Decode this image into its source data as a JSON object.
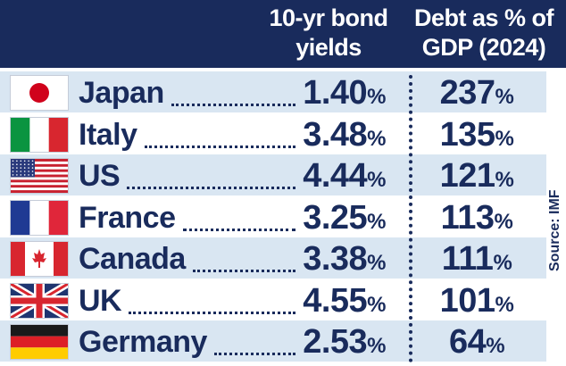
{
  "chart_data": {
    "type": "table",
    "columns": [
      "",
      "10-yr bond yields",
      "Debt as % of GDP (2024)"
    ],
    "header": {
      "yield_line1": "10-yr bond",
      "yield_line2": "yields",
      "debt_line1": "Debt as % of",
      "debt_line2": "GDP (2024)"
    },
    "rows": [
      {
        "country": "Japan",
        "flag": "japan-flag-icon",
        "yield": "1.40",
        "debt": "237"
      },
      {
        "country": "Italy",
        "flag": "italy-flag-icon",
        "yield": "3.48",
        "debt": "135"
      },
      {
        "country": "US",
        "flag": "us-flag-icon",
        "yield": "4.44",
        "debt": "121"
      },
      {
        "country": "France",
        "flag": "france-flag-icon",
        "yield": "3.25",
        "debt": "113"
      },
      {
        "country": "Canada",
        "flag": "canada-flag-icon",
        "yield": "3.38",
        "debt": "111"
      },
      {
        "country": "UK",
        "flag": "uk-flag-icon",
        "yield": "4.55",
        "debt": "101"
      },
      {
        "country": "Germany",
        "flag": "germany-flag-icon",
        "yield": "2.53",
        "debt": "64"
      }
    ],
    "unit": "%",
    "source": "Source: IMF"
  },
  "colors": {
    "header_bg": "#192b5c",
    "text": "#192b5c",
    "row_shade": "#d9e6f2"
  }
}
